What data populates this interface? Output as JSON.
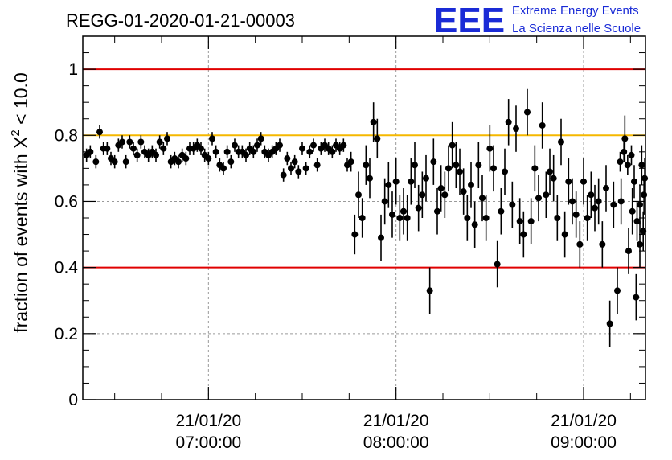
{
  "header": {
    "run_title": "REGG-01-2020-01-21-00003",
    "logo_mark": "EEE",
    "logo_line1": "Extreme Energy Events",
    "logo_line2": "La Scienza nelle Scuole"
  },
  "chart_data": {
    "type": "scatter",
    "ylabel_prefix": "fraction of events with X",
    "ylabel_sup": "2",
    "ylabel_suffix": " < 10.0",
    "ylim": [
      0,
      1.1
    ],
    "yticks": [
      0,
      0.2,
      0.4,
      0.6,
      0.8,
      1
    ],
    "ytick_labels": [
      "0",
      "0.2",
      "0.4",
      "0.6",
      "0.8",
      "1"
    ],
    "xlim_hours": [
      6.33,
      9.33
    ],
    "xticks": [
      {
        "hour": 7,
        "date": "21/01/20",
        "time": "07:00:00"
      },
      {
        "hour": 8,
        "date": "21/01/20",
        "time": "08:00:00"
      },
      {
        "hour": 9,
        "date": "21/01/20",
        "time": "09:00:00"
      }
    ],
    "grid": true,
    "reference_lines": [
      {
        "y": 1.0,
        "color": "#e00000"
      },
      {
        "y": 0.8,
        "color": "#f5b800"
      },
      {
        "y": 0.4,
        "color": "#e00000"
      }
    ],
    "marker_color": "#000000",
    "points": [
      [
        6.35,
        0.74,
        0.02
      ],
      [
        6.37,
        0.75,
        0.02
      ],
      [
        6.4,
        0.72,
        0.02
      ],
      [
        6.42,
        0.81,
        0.02
      ],
      [
        6.44,
        0.76,
        0.02
      ],
      [
        6.46,
        0.76,
        0.02
      ],
      [
        6.48,
        0.73,
        0.02
      ],
      [
        6.5,
        0.72,
        0.02
      ],
      [
        6.52,
        0.77,
        0.02
      ],
      [
        6.54,
        0.78,
        0.02
      ],
      [
        6.56,
        0.72,
        0.02
      ],
      [
        6.58,
        0.78,
        0.02
      ],
      [
        6.6,
        0.76,
        0.02
      ],
      [
        6.62,
        0.74,
        0.02
      ],
      [
        6.64,
        0.78,
        0.02
      ],
      [
        6.66,
        0.75,
        0.02
      ],
      [
        6.68,
        0.74,
        0.02
      ],
      [
        6.7,
        0.75,
        0.02
      ],
      [
        6.72,
        0.74,
        0.02
      ],
      [
        6.74,
        0.78,
        0.02
      ],
      [
        6.76,
        0.76,
        0.02
      ],
      [
        6.78,
        0.79,
        0.02
      ],
      [
        6.8,
        0.72,
        0.02
      ],
      [
        6.82,
        0.73,
        0.02
      ],
      [
        6.84,
        0.72,
        0.02
      ],
      [
        6.86,
        0.74,
        0.02
      ],
      [
        6.88,
        0.73,
        0.02
      ],
      [
        6.9,
        0.76,
        0.02
      ],
      [
        6.92,
        0.76,
        0.02
      ],
      [
        6.94,
        0.77,
        0.02
      ],
      [
        6.96,
        0.76,
        0.02
      ],
      [
        6.98,
        0.74,
        0.02
      ],
      [
        7.0,
        0.73,
        0.02
      ],
      [
        7.02,
        0.79,
        0.02
      ],
      [
        7.04,
        0.75,
        0.02
      ],
      [
        7.06,
        0.71,
        0.02
      ],
      [
        7.08,
        0.7,
        0.02
      ],
      [
        7.1,
        0.75,
        0.02
      ],
      [
        7.12,
        0.72,
        0.02
      ],
      [
        7.14,
        0.77,
        0.02
      ],
      [
        7.16,
        0.75,
        0.02
      ],
      [
        7.18,
        0.75,
        0.02
      ],
      [
        7.2,
        0.74,
        0.02
      ],
      [
        7.22,
        0.76,
        0.02
      ],
      [
        7.24,
        0.75,
        0.02
      ],
      [
        7.26,
        0.77,
        0.02
      ],
      [
        7.28,
        0.79,
        0.02
      ],
      [
        7.3,
        0.75,
        0.02
      ],
      [
        7.32,
        0.74,
        0.02
      ],
      [
        7.34,
        0.75,
        0.02
      ],
      [
        7.36,
        0.76,
        0.02
      ],
      [
        7.38,
        0.77,
        0.02
      ],
      [
        7.4,
        0.68,
        0.02
      ],
      [
        7.42,
        0.73,
        0.02
      ],
      [
        7.44,
        0.7,
        0.02
      ],
      [
        7.46,
        0.72,
        0.02
      ],
      [
        7.48,
        0.69,
        0.02
      ],
      [
        7.5,
        0.76,
        0.02
      ],
      [
        7.52,
        0.7,
        0.02
      ],
      [
        7.54,
        0.75,
        0.02
      ],
      [
        7.56,
        0.77,
        0.02
      ],
      [
        7.58,
        0.71,
        0.02
      ],
      [
        7.6,
        0.76,
        0.02
      ],
      [
        7.62,
        0.77,
        0.02
      ],
      [
        7.64,
        0.76,
        0.02
      ],
      [
        7.66,
        0.75,
        0.02
      ],
      [
        7.68,
        0.77,
        0.02
      ],
      [
        7.7,
        0.76,
        0.02
      ],
      [
        7.72,
        0.77,
        0.02
      ],
      [
        7.74,
        0.71,
        0.02
      ],
      [
        7.76,
        0.72,
        0.03
      ],
      [
        7.78,
        0.5,
        0.06
      ],
      [
        7.8,
        0.62,
        0.07
      ],
      [
        7.82,
        0.55,
        0.06
      ],
      [
        7.84,
        0.71,
        0.06
      ],
      [
        7.86,
        0.67,
        0.06
      ],
      [
        7.88,
        0.84,
        0.06
      ],
      [
        7.9,
        0.79,
        0.06
      ],
      [
        7.92,
        0.49,
        0.07
      ],
      [
        7.94,
        0.6,
        0.07
      ],
      [
        7.96,
        0.65,
        0.07
      ],
      [
        7.98,
        0.56,
        0.07
      ],
      [
        8.0,
        0.66,
        0.07
      ],
      [
        8.02,
        0.55,
        0.07
      ],
      [
        8.04,
        0.57,
        0.07
      ],
      [
        8.06,
        0.55,
        0.07
      ],
      [
        8.08,
        0.66,
        0.07
      ],
      [
        8.1,
        0.71,
        0.07
      ],
      [
        8.12,
        0.58,
        0.07
      ],
      [
        8.14,
        0.62,
        0.07
      ],
      [
        8.16,
        0.67,
        0.07
      ],
      [
        8.18,
        0.33,
        0.07
      ],
      [
        8.2,
        0.72,
        0.07
      ],
      [
        8.22,
        0.57,
        0.07
      ],
      [
        8.24,
        0.64,
        0.07
      ],
      [
        8.26,
        0.62,
        0.07
      ],
      [
        8.28,
        0.7,
        0.07
      ],
      [
        8.3,
        0.77,
        0.07
      ],
      [
        8.32,
        0.71,
        0.07
      ],
      [
        8.34,
        0.69,
        0.07
      ],
      [
        8.36,
        0.63,
        0.07
      ],
      [
        8.38,
        0.55,
        0.07
      ],
      [
        8.4,
        0.65,
        0.07
      ],
      [
        8.42,
        0.53,
        0.07
      ],
      [
        8.44,
        0.71,
        0.07
      ],
      [
        8.46,
        0.61,
        0.07
      ],
      [
        8.48,
        0.55,
        0.07
      ],
      [
        8.5,
        0.76,
        0.07
      ],
      [
        8.52,
        0.7,
        0.07
      ],
      [
        8.54,
        0.41,
        0.07
      ],
      [
        8.56,
        0.57,
        0.07
      ],
      [
        8.58,
        0.69,
        0.07
      ],
      [
        8.6,
        0.84,
        0.07
      ],
      [
        8.62,
        0.59,
        0.07
      ],
      [
        8.64,
        0.82,
        0.07
      ],
      [
        8.66,
        0.54,
        0.07
      ],
      [
        8.68,
        0.5,
        0.07
      ],
      [
        8.7,
        0.87,
        0.07
      ],
      [
        8.72,
        0.54,
        0.07
      ],
      [
        8.74,
        0.7,
        0.07
      ],
      [
        8.76,
        0.61,
        0.07
      ],
      [
        8.78,
        0.83,
        0.07
      ],
      [
        8.8,
        0.62,
        0.07
      ],
      [
        8.82,
        0.69,
        0.07
      ],
      [
        8.84,
        0.67,
        0.07
      ],
      [
        8.86,
        0.55,
        0.07
      ],
      [
        8.88,
        0.78,
        0.07
      ],
      [
        8.9,
        0.5,
        0.07
      ],
      [
        8.92,
        0.66,
        0.07
      ],
      [
        8.94,
        0.6,
        0.07
      ],
      [
        8.96,
        0.56,
        0.07
      ],
      [
        8.98,
        0.47,
        0.07
      ],
      [
        9.0,
        0.66,
        0.07
      ],
      [
        9.02,
        0.55,
        0.07
      ],
      [
        9.04,
        0.62,
        0.07
      ],
      [
        9.06,
        0.58,
        0.07
      ],
      [
        9.08,
        0.6,
        0.07
      ],
      [
        9.1,
        0.47,
        0.07
      ],
      [
        9.12,
        0.64,
        0.07
      ],
      [
        9.14,
        0.23,
        0.07
      ],
      [
        9.16,
        0.59,
        0.07
      ],
      [
        9.18,
        0.33,
        0.07
      ],
      [
        9.2,
        0.6,
        0.07
      ],
      [
        9.22,
        0.79,
        0.07
      ],
      [
        9.24,
        0.45,
        0.07
      ],
      [
        9.26,
        0.57,
        0.07
      ],
      [
        9.28,
        0.31,
        0.07
      ],
      [
        9.3,
        0.47,
        0.07
      ]
    ],
    "points_tail": [
      [
        9.195,
        0.72,
        0.03
      ],
      [
        9.215,
        0.75,
        0.03
      ],
      [
        9.235,
        0.71,
        0.03
      ],
      [
        9.255,
        0.74,
        0.03
      ],
      [
        9.27,
        0.66,
        0.05
      ],
      [
        9.285,
        0.54,
        0.06
      ],
      [
        9.3,
        0.59,
        0.06
      ],
      [
        9.31,
        0.71,
        0.06
      ],
      [
        9.318,
        0.51,
        0.06
      ],
      [
        9.322,
        0.62,
        0.06
      ],
      [
        9.326,
        0.67,
        0.06
      ]
    ]
  }
}
